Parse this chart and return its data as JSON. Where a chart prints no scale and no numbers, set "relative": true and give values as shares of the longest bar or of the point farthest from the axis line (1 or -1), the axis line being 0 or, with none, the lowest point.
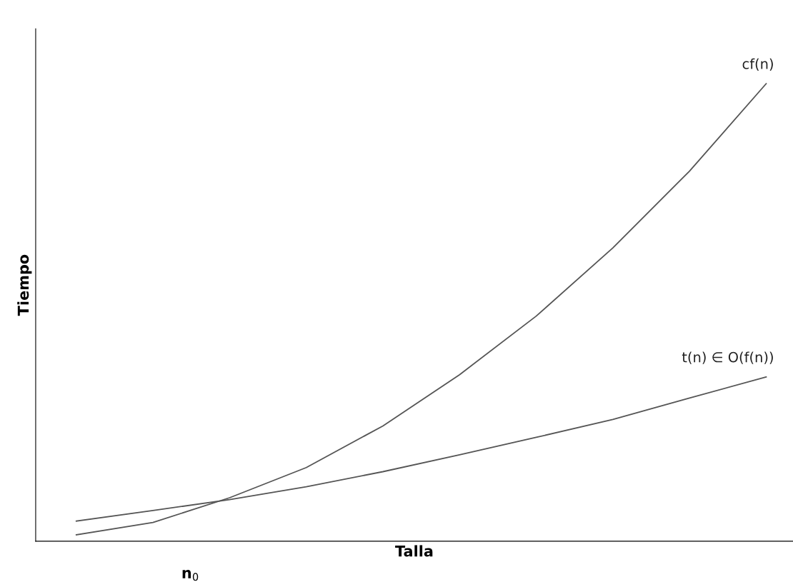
{
  "chart_data": {
    "type": "line",
    "relative": true,
    "xlabel": "Talla",
    "ylabel": "Tiempo",
    "categories": [
      null,
      null,
      null,
      null,
      null,
      null,
      null,
      null,
      null,
      null
    ],
    "series": [
      {
        "name": "cf(n)",
        "color": "#555555",
        "values": [
          0.014,
          0.041,
          0.095,
          0.161,
          0.252,
          0.364,
          0.492,
          0.641,
          0.809,
          1
        ]
      },
      {
        "name": "t(n) ∈ O(f(n))",
        "color": "#555555",
        "values": [
          0.044,
          0.067,
          0.091,
          0.119,
          0.152,
          0.189,
          0.227,
          0.266,
          0.313,
          0.359
        ]
      }
    ],
    "annotations": [
      "n$_{0}$"
    ],
    "marker": "none",
    "line_style": "solid"
  }
}
